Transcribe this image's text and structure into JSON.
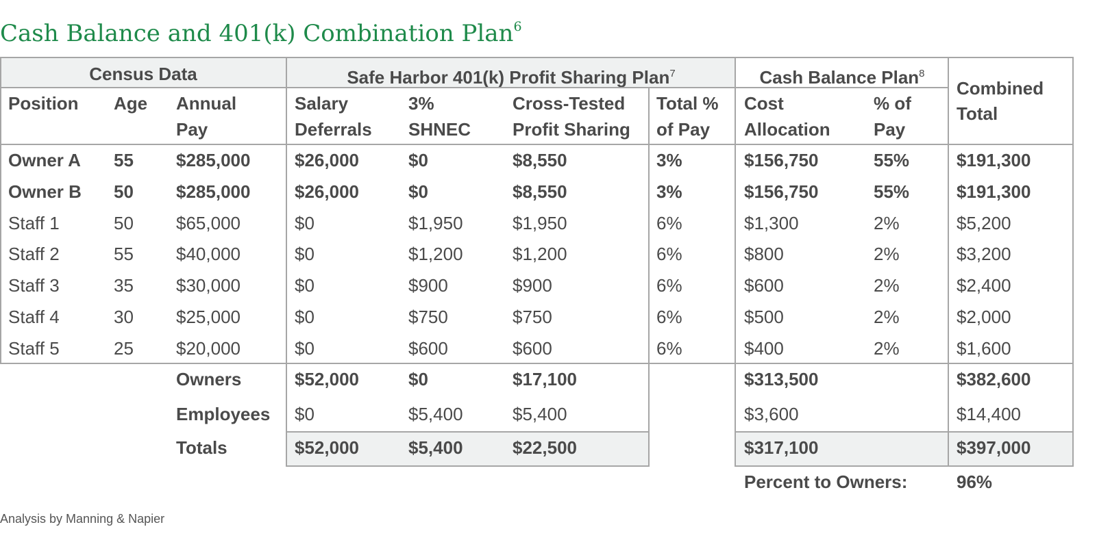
{
  "title": "Cash Balance and 401(k) Combination Plan",
  "title_sup": "6",
  "groups": {
    "census": "Census Data",
    "safe_harbor": "Safe Harbor 401(k) Profit Sharing Plan",
    "safe_harbor_sup": "7",
    "cash_balance": "Cash Balance Plan",
    "cash_balance_sup": "8",
    "combined_1": "Combined",
    "combined_2": "Total"
  },
  "columns": {
    "position": "Position",
    "age": "Age",
    "pay_1": "Annual",
    "pay_2": "Pay",
    "sal_1": "Salary",
    "sal_2": "Deferrals",
    "shnec_1": "3%",
    "shnec_2": "SHNEC",
    "cross_1": "Cross-Tested",
    "cross_2": "Profit Sharing",
    "tot_1": "Total %",
    "tot_2": "of Pay",
    "cost_1": "Cost",
    "cost_2": "Allocation",
    "pct_1": "% of",
    "pct_2": "Pay"
  },
  "rows": [
    {
      "position": "Owner A",
      "age": "55",
      "pay": "$285,000",
      "sal": "$26,000",
      "shnec": "$0",
      "cross": "$8,550",
      "tot": "3%",
      "cost": "$156,750",
      "pct": "55%",
      "comb": "$191,300"
    },
    {
      "position": "Owner B",
      "age": "50",
      "pay": "$285,000",
      "sal": "$26,000",
      "shnec": "$0",
      "cross": "$8,550",
      "tot": "3%",
      "cost": "$156,750",
      "pct": "55%",
      "comb": "$191,300"
    },
    {
      "position": "Staff 1",
      "age": "50",
      "pay": "$65,000",
      "sal": "$0",
      "shnec": "$1,950",
      "cross": "$1,950",
      "tot": "6%",
      "cost": "$1,300",
      "pct": "2%",
      "comb": "$5,200"
    },
    {
      "position": "Staff 2",
      "age": "55",
      "pay": "$40,000",
      "sal": "$0",
      "shnec": "$1,200",
      "cross": "$1,200",
      "tot": "6%",
      "cost": "$800",
      "pct": "2%",
      "comb": "$3,200"
    },
    {
      "position": "Staff 3",
      "age": "35",
      "pay": "$30,000",
      "sal": "$0",
      "shnec": "$900",
      "cross": "$900",
      "tot": "6%",
      "cost": "$600",
      "pct": "2%",
      "comb": "$2,400"
    },
    {
      "position": "Staff 4",
      "age": "30",
      "pay": "$25,000",
      "sal": "$0",
      "shnec": "$750",
      "cross": "$750",
      "tot": "6%",
      "cost": "$500",
      "pct": "2%",
      "comb": "$2,000"
    },
    {
      "position": "Staff 5",
      "age": "25",
      "pay": "$20,000",
      "sal": "$0",
      "shnec": "$600",
      "cross": "$600",
      "tot": "6%",
      "cost": "$400",
      "pct": "2%",
      "comb": "$1,600"
    }
  ],
  "summary": [
    {
      "label": "Owners",
      "sal": "$52,000",
      "shnec": "$0",
      "cross": "$17,100",
      "cost": "$313,500",
      "comb": "$382,600"
    },
    {
      "label": "Employees",
      "sal": "$0",
      "shnec": "$5,400",
      "cross": "$5,400",
      "cost": "$3,600",
      "comb": "$14,400"
    },
    {
      "label": "Totals",
      "sal": "$52,000",
      "shnec": "$5,400",
      "cross": "$22,500",
      "cost": "$317,100",
      "comb": "$397,000"
    }
  ],
  "percent_to_owners": {
    "label": "Percent to Owners:",
    "value": "96%"
  },
  "credit": "Analysis by Manning & Napier"
}
